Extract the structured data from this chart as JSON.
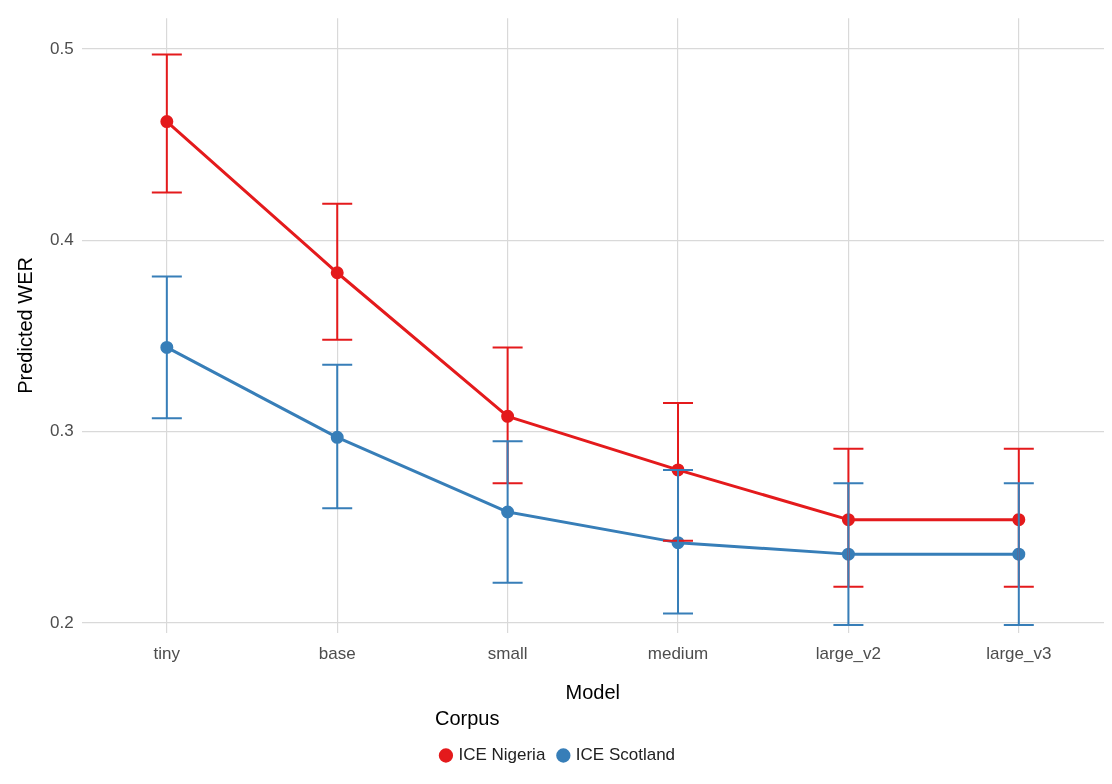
{
  "chart_data": {
    "type": "line",
    "xlabel": "Model",
    "ylabel": "Predicted WER",
    "legend_title": "Corpus",
    "categories": [
      "tiny",
      "base",
      "small",
      "medium",
      "large_v2",
      "large_v3"
    ],
    "series": [
      {
        "name": "ICE Nigeria",
        "color": "#e41a1c",
        "values": [
          0.462,
          0.383,
          0.308,
          0.28,
          0.254,
          0.254
        ],
        "errors": [
          [
            0.425,
            0.497
          ],
          [
            0.348,
            0.419
          ],
          [
            0.273,
            0.344
          ],
          [
            0.243,
            0.315
          ],
          [
            0.219,
            0.291
          ],
          [
            0.219,
            0.291
          ]
        ]
      },
      {
        "name": "ICE Scotland",
        "color": "#377eb8",
        "values": [
          0.344,
          0.297,
          0.258,
          0.242,
          0.236,
          0.236
        ],
        "errors": [
          [
            0.307,
            0.381
          ],
          [
            0.26,
            0.335
          ],
          [
            0.221,
            0.295
          ],
          [
            0.205,
            0.28
          ],
          [
            0.199,
            0.273
          ],
          [
            0.199,
            0.273
          ]
        ]
      }
    ],
    "ylim": [
      0.195,
      0.516
    ],
    "yticks": [
      0.2,
      0.3,
      0.4,
      0.5
    ],
    "grid": true,
    "legend": "bottom",
    "marker": "circle",
    "line_style": "solid"
  }
}
